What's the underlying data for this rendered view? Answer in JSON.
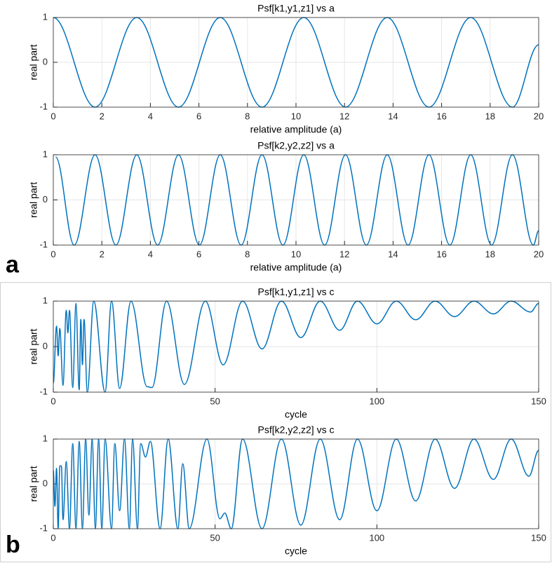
{
  "panel_labels": [
    "a",
    "b"
  ],
  "chart_data": [
    {
      "type": "line",
      "title": "Psf[k1,y1,z1] vs a",
      "xlabel": "relative amplitude (a)",
      "ylabel": "real part",
      "xlim": [
        0,
        20
      ],
      "ylim": [
        -1,
        1
      ],
      "xticks": [
        0,
        2,
        4,
        6,
        8,
        10,
        12,
        14,
        16,
        18,
        20
      ],
      "yticks": [
        -1,
        0,
        1
      ],
      "grid": true,
      "series": [
        {
          "color": "#0072bd",
          "x": [
            0,
            1.72,
            3.44,
            5.16,
            6.88,
            8.6,
            10.32,
            12.04,
            13.76,
            15.48,
            17.2,
            18.92,
            20
          ],
          "values": [
            1,
            -1,
            1,
            -1,
            1,
            -1,
            1,
            -1,
            1,
            -1,
            1,
            -1,
            0.39
          ]
        }
      ]
    },
    {
      "type": "line",
      "title": "Psf[k2,y2,z2] vs a",
      "xlabel": "relative amplitude (a)",
      "ylabel": "real part",
      "xlim": [
        0,
        20
      ],
      "ylim": [
        -1,
        1
      ],
      "xticks": [
        0,
        2,
        4,
        6,
        8,
        10,
        12,
        14,
        16,
        18,
        20
      ],
      "yticks": [
        -1,
        0,
        1
      ],
      "grid": true,
      "series": [
        {
          "color": "#0072bd",
          "x": [
            0.1,
            0.86,
            1.72,
            2.58,
            3.44,
            4.3,
            5.16,
            6.02,
            6.88,
            7.74,
            8.6,
            9.46,
            10.32,
            11.18,
            12.04,
            12.9,
            13.76,
            14.62,
            15.48,
            16.34,
            17.2,
            18.06,
            18.92,
            19.78,
            20
          ],
          "values": [
            0.95,
            -1,
            1,
            -1,
            1,
            -1,
            1,
            -1,
            1,
            -1,
            1,
            -1,
            1,
            -1,
            1,
            -1,
            1,
            -1,
            1,
            -1,
            1,
            -1,
            1,
            -1,
            -0.68
          ]
        }
      ]
    },
    {
      "type": "line",
      "title": "Psf[k1,y1,z1] vs c",
      "xlabel": "cycle",
      "ylabel": "real part",
      "xlim": [
        0,
        150
      ],
      "ylim": [
        -1,
        1
      ],
      "xticks": [
        0,
        50,
        100,
        150
      ],
      "yticks": [
        -1,
        0,
        1
      ],
      "grid": true,
      "series": [
        {
          "color": "#0072bd",
          "x": [
            0,
            1,
            1.5,
            2,
            3,
            4,
            4.5,
            5,
            6,
            7,
            8,
            8.5,
            9,
            9.5,
            10.5,
            12.5,
            16,
            18,
            20.5,
            24,
            29,
            30.5,
            35,
            40.5,
            47,
            52.5,
            58.5,
            64.5,
            70.5,
            76.5,
            82.5,
            88.5,
            94,
            100,
            106,
            112,
            118,
            124,
            130,
            136,
            141.5,
            147.5,
            150
          ],
          "values": [
            -0.8,
            0.45,
            -0.2,
            0.4,
            -0.85,
            0.8,
            0.3,
            0.8,
            -0.9,
            0.95,
            -0.95,
            0.6,
            -0.4,
            0.6,
            -1,
            1,
            -1,
            1,
            -0.92,
            1,
            -0.88,
            -0.9,
            1,
            -0.83,
            1,
            -0.4,
            1,
            -0.05,
            1,
            0.2,
            1,
            0.36,
            1,
            0.5,
            1,
            0.59,
            1,
            0.66,
            1,
            0.72,
            1,
            0.76,
            0.95
          ]
        }
      ]
    },
    {
      "type": "line",
      "title": "Psf[k2,y2,z2] vs c",
      "xlabel": "cycle",
      "ylabel": "real part",
      "xlim": [
        0,
        150
      ],
      "ylim": [
        -1,
        1
      ],
      "xticks": [
        0,
        50,
        100,
        150
      ],
      "yticks": [
        -1,
        0,
        1
      ],
      "grid": true,
      "series": [
        {
          "color": "#0072bd",
          "x": [
            0,
            0.5,
            1,
            1.5,
            2,
            2.5,
            3,
            4,
            5,
            6,
            7,
            8,
            9,
            10,
            11,
            12,
            13,
            14,
            15,
            16,
            18,
            19,
            20.5,
            22,
            23.5,
            24.5,
            26,
            27,
            28.5,
            30,
            33,
            35.5,
            38.5,
            40,
            42,
            47.5,
            51.5,
            53,
            55,
            58.5,
            64.5,
            70.5,
            76.5,
            82.5,
            88.5,
            94,
            100,
            106,
            112,
            118,
            124,
            130,
            136,
            141.5,
            147,
            150
          ],
          "values": [
            0.3,
            -0.5,
            0.35,
            -1,
            0.4,
            0.4,
            -0.8,
            0.5,
            -1,
            0.9,
            -1,
            0.95,
            -1,
            1,
            -0.7,
            1,
            -1,
            1,
            -1,
            1,
            -1,
            0.9,
            -0.6,
            1,
            -1,
            1,
            -1,
            0.9,
            0.6,
            0.95,
            -1,
            1,
            -1,
            0.45,
            -1,
            1,
            -0.78,
            -0.65,
            -1,
            1,
            -1,
            1,
            -0.92,
            1,
            -0.8,
            1,
            -0.6,
            1,
            -0.38,
            1,
            -0.1,
            1,
            0.1,
            1,
            0.17,
            0.75
          ]
        }
      ]
    }
  ]
}
